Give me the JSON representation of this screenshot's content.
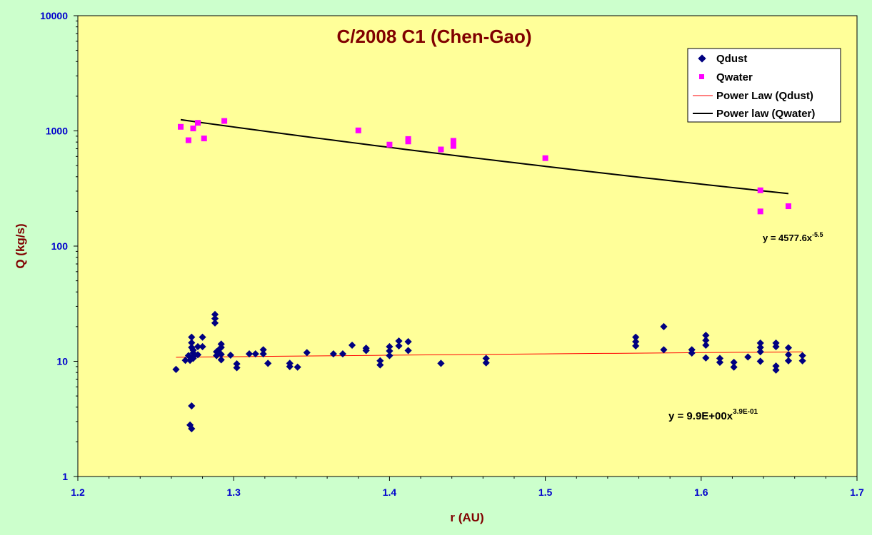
{
  "colors": {
    "background": "#ccffcc",
    "plot_area": "#ffff99",
    "title": "#800000",
    "axis_title": "#800000",
    "tick_label": "#0000cc",
    "dust_marker": "#000080",
    "water_marker": "#ff00ff",
    "dust_fit": "#ff0000",
    "water_fit": "#000000"
  },
  "chart_data": {
    "type": "scatter",
    "title": "C/2008 C1 (Chen-Gao)",
    "xlabel": "r (AU)",
    "ylabel": "Q (kg/s)",
    "xlim": [
      1.2,
      1.7
    ],
    "ylim": [
      1,
      10000
    ],
    "y_scale": "log",
    "grid": false,
    "legend_position": "top-right",
    "x_ticks": [
      "1.2",
      "1.3",
      "1.4",
      "1.5",
      "1.6",
      "1.7"
    ],
    "x_tick_values": [
      1.2,
      1.3,
      1.4,
      1.5,
      1.6,
      1.7
    ],
    "y_ticks": [
      "1",
      "10",
      "100",
      "1000",
      "10000"
    ],
    "y_tick_values": [
      1,
      10,
      100,
      1000,
      10000
    ],
    "series": [
      {
        "name": "Qdust",
        "marker": "diamond",
        "x": [
          1.263,
          1.269,
          1.271,
          1.272,
          1.272,
          1.273,
          1.273,
          1.273,
          1.273,
          1.273,
          1.274,
          1.274,
          1.274,
          1.274,
          1.277,
          1.277,
          1.28,
          1.28,
          1.288,
          1.288,
          1.288,
          1.289,
          1.289,
          1.29,
          1.292,
          1.292,
          1.292,
          1.292,
          1.298,
          1.302,
          1.302,
          1.31,
          1.314,
          1.319,
          1.319,
          1.322,
          1.336,
          1.336,
          1.341,
          1.347,
          1.364,
          1.37,
          1.376,
          1.385,
          1.385,
          1.394,
          1.394,
          1.4,
          1.4,
          1.4,
          1.406,
          1.406,
          1.412,
          1.412,
          1.433,
          1.462,
          1.462,
          1.558,
          1.558,
          1.558,
          1.576,
          1.576,
          1.594,
          1.594,
          1.603,
          1.603,
          1.603,
          1.603,
          1.612,
          1.612,
          1.621,
          1.621,
          1.63,
          1.638,
          1.638,
          1.638,
          1.638,
          1.648,
          1.648,
          1.648,
          1.648,
          1.656,
          1.656,
          1.656,
          1.665,
          1.665
        ],
        "y": [
          8.5,
          10.2,
          11.2,
          10.2,
          2.8,
          2.6,
          4.1,
          16.2,
          14.5,
          13.2,
          12.5,
          11.8,
          11.0,
          10.6,
          13.4,
          11.4,
          16.2,
          13.4,
          25.5,
          23.5,
          21.5,
          12.1,
          11.2,
          12.4,
          14.1,
          13.2,
          11.5,
          10.3,
          11.3,
          9.5,
          8.8,
          11.6,
          11.6,
          12.6,
          11.6,
          9.6,
          9.6,
          9.0,
          8.9,
          11.9,
          11.6,
          11.6,
          13.8,
          13.0,
          12.4,
          10.1,
          9.3,
          13.4,
          12.3,
          11.2,
          15.0,
          13.6,
          14.8,
          12.4,
          9.6,
          10.6,
          9.7,
          16.2,
          14.8,
          13.6,
          20.0,
          12.6,
          12.6,
          11.8,
          16.8,
          15.2,
          13.8,
          10.7,
          10.6,
          9.8,
          9.8,
          8.9,
          10.9,
          14.4,
          13.2,
          12.1,
          10.0,
          14.4,
          13.4,
          9.1,
          8.4,
          13.1,
          11.4,
          10.1,
          11.2,
          10.1
        ]
      },
      {
        "name": "Qwater",
        "marker": "square",
        "x": [
          1.266,
          1.271,
          1.274,
          1.277,
          1.281,
          1.294,
          1.38,
          1.4,
          1.412,
          1.412,
          1.433,
          1.441,
          1.441,
          1.5,
          1.638,
          1.638,
          1.656
        ],
        "y": [
          1085,
          830,
          1050,
          1175,
          860,
          1220,
          1010,
          760,
          850,
          810,
          690,
          820,
          740,
          580,
          305,
          200,
          222
        ]
      }
    ],
    "fits": [
      {
        "name": "Power Law (Qdust)",
        "coef": 9.9,
        "exp": 0.39,
        "x_range": [
          1.263,
          1.665
        ],
        "equation_base": "y = 9.9E+00x",
        "equation_exp": "3.9E-01"
      },
      {
        "name": "Power law (Qwater)",
        "coef": 4577.6,
        "exp": -5.5,
        "x_range": [
          1.266,
          1.656
        ],
        "equation_base": "y = 4577.6x",
        "equation_exp": "-5.5"
      }
    ]
  }
}
